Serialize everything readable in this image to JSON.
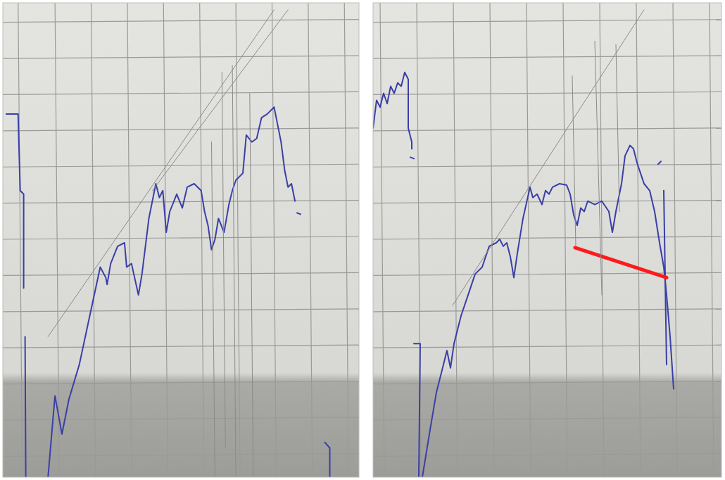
{
  "chart_data": [
    {
      "type": "line",
      "xlim": [
        0,
        512
      ],
      "ylim": [
        0,
        682
      ],
      "xticks": [
        22,
        75,
        127,
        179,
        231,
        283,
        335,
        387,
        439,
        491
      ],
      "yticks": [
        30,
        82,
        134,
        186,
        238,
        290,
        342,
        394,
        446,
        498,
        550,
        602,
        654
      ],
      "grid": true,
      "tick_labels": false,
      "series": [
        {
          "color": "#3a3fa6",
          "x": [
            5,
            22,
            25,
            30,
            30,
            null,
            32,
            33,
            null,
            65,
            75,
            85,
            95,
            110,
            125,
            140,
            148,
            150,
            155,
            165,
            175,
            178,
            185,
            195,
            200,
            210,
            220,
            225,
            230,
            235,
            240,
            250,
            258,
            265,
            275,
            285,
            290,
            295,
            300,
            305,
            310,
            318,
            325,
            330,
            335,
            345,
            350,
            358,
            365,
            372,
            380,
            390,
            393,
            400,
            405,
            410,
            415,
            420,
            null,
            423,
            428,
            null,
            463,
            470,
            470
          ],
          "values": [
            522,
            522,
            412,
            407,
            272,
            null,
            202,
            0,
            null,
            0,
            117,
            62,
            112,
            162,
            232,
            302,
            287,
            277,
            307,
            332,
            337,
            302,
            307,
            262,
            292,
            372,
            422,
            402,
            412,
            352,
            382,
            407,
            387,
            417,
            422,
            412,
            382,
            362,
            327,
            342,
            372,
            352,
            392,
            412,
            427,
            437,
            492,
            482,
            487,
            517,
            522,
            532,
            517,
            482,
            442,
            417,
            422,
            397,
            null,
            380,
            378,
            null,
            50,
            42,
            0
          ]
        },
        {
          "color": "#8a8a8a",
          "x": [
            65,
            390
          ],
          "values": [
            202,
            672
          ]
        },
        {
          "color": "#8a8a8a",
          "x": [
            215,
            410
          ],
          "values": [
            412,
            672
          ]
        },
        {
          "color": "#8a8a8a",
          "x": [
            300,
            305
          ],
          "values": [
            482,
            0
          ]
        },
        {
          "color": "#8a8a8a",
          "x": [
            315,
            320
          ],
          "values": [
            582,
            42
          ]
        },
        {
          "color": "#8a8a8a",
          "x": [
            330,
            335
          ],
          "values": [
            592,
            0
          ]
        },
        {
          "color": "#8a8a8a",
          "x": [
            355,
            360
          ],
          "values": [
            552,
            0
          ]
        }
      ]
    },
    {
      "type": "line",
      "xlim": [
        0,
        495
      ],
      "ylim": [
        0,
        682
      ],
      "xticks": [
        10,
        62,
        114,
        166,
        218,
        270,
        322,
        374,
        426,
        478
      ],
      "yticks": [
        30,
        82,
        134,
        186,
        238,
        290,
        342,
        394,
        446,
        498,
        550,
        602,
        654
      ],
      "grid": true,
      "tick_labels": false,
      "series": [
        {
          "color": "#3a3fa6",
          "x": [
            0,
            5,
            10,
            15,
            20,
            25,
            30,
            35,
            40,
            45,
            50,
            50,
            55,
            55,
            null,
            53,
            58,
            null,
            58,
            67,
            65,
            null,
            70,
            80,
            90,
            100,
            105,
            110,
            115,
            125,
            135,
            145,
            155,
            165,
            175,
            180,
            185,
            190,
            195,
            200,
            205,
            213,
            223,
            227,
            233,
            240,
            245,
            250,
            255,
            265,
            275,
            280,
            285,
            290,
            295,
            300,
            305,
            315,
            325,
            335,
            340,
            345,
            353,
            358,
            365,
            370,
            375,
            385,
            393,
            400,
            407,
            413,
            417,
            422,
            427
          ],
          "values": [
            502,
            542,
            532,
            552,
            537,
            562,
            552,
            567,
            562,
            582,
            572,
            502,
            482,
            472,
            null,
            460,
            458,
            null,
            192,
            192,
            0,
            null,
            0,
            62,
            122,
            162,
            182,
            157,
            192,
            232,
            262,
            292,
            302,
            332,
            337,
            342,
            332,
            337,
            317,
            287,
            322,
            372,
            417,
            402,
            407,
            392,
            412,
            407,
            417,
            422,
            420,
            407,
            377,
            362,
            387,
            382,
            397,
            392,
            397,
            382,
            352,
            382,
            422,
            462,
            477,
            472,
            452,
            422,
            412,
            382,
            337,
            302,
            262,
            202,
            127
          ]
        },
        {
          "color": "#3a3fa6",
          "x": [
            413,
            417
          ],
          "values": [
            412,
            162
          ]
        },
        {
          "color": "#3a3fa6",
          "x": [
            405,
            409
          ],
          "values": [
            450,
            454
          ]
        },
        {
          "color": "#ff1a1a",
          "x": [
            287,
            417
          ],
          "values": [
            330,
            287
          ]
        },
        {
          "color": "#8a8a8a",
          "x": [
            113,
            385
          ],
          "values": [
            247,
            672
          ]
        },
        {
          "color": "#8a8a8a",
          "x": [
            283,
            288
          ],
          "values": [
            577,
            332
          ]
        },
        {
          "color": "#8a8a8a",
          "x": [
            315,
            325
          ],
          "values": [
            627,
            262
          ]
        },
        {
          "color": "#8a8a8a",
          "x": [
            345,
            350
          ],
          "values": [
            622,
            382
          ]
        }
      ]
    }
  ]
}
